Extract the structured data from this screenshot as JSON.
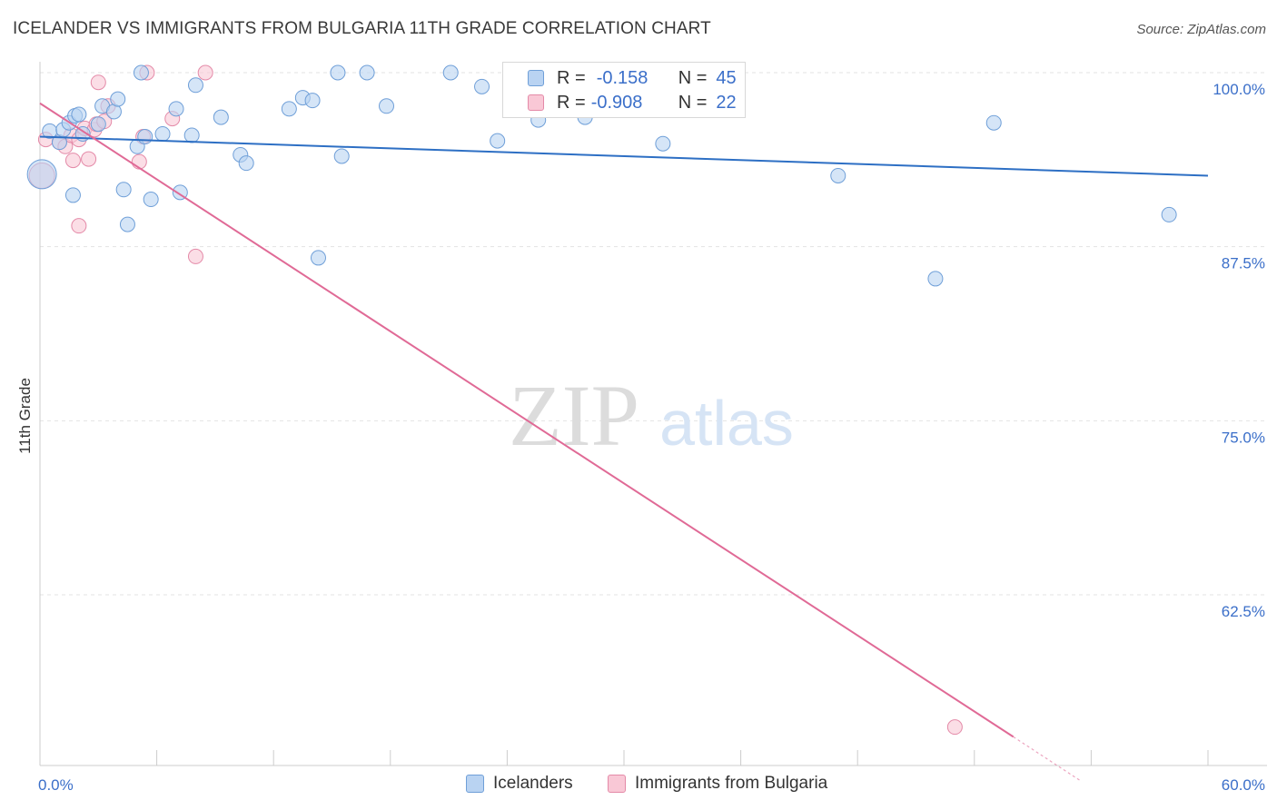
{
  "title": "ICELANDER VS IMMIGRANTS FROM BULGARIA 11TH GRADE CORRELATION CHART",
  "source": "Source: ZipAtlas.com",
  "watermark": {
    "zip": "ZIP",
    "atlas": "atlas"
  },
  "legend_top": {
    "rows": [
      {
        "r_label": "R =",
        "r_value": "-0.158",
        "n_label": "N =",
        "n_value": "45"
      },
      {
        "r_label": "R =",
        "r_value": "-0.908",
        "n_label": "N =",
        "n_value": "22"
      }
    ]
  },
  "legend_bottom": {
    "series1": "Icelanders",
    "series2": "Immigrants from Bulgaria"
  },
  "colors": {
    "blue_fill": "#b9d3f2",
    "blue_stroke": "#6f9fd8",
    "blue_line": "#2d6fc4",
    "pink_fill": "#f9c8d6",
    "pink_stroke": "#e48aa8",
    "pink_line": "#e06a96",
    "axis_text": "#3b6fc9"
  },
  "chart_data": {
    "type": "scatter",
    "title": "ICELANDER VS IMMIGRANTS FROM BULGARIA 11TH GRADE CORRELATION CHART",
    "xlabel": "",
    "ylabel": "11th Grade",
    "xlim": [
      0,
      60
    ],
    "ylim": [
      50,
      102
    ],
    "x_tick_labels": [
      "0.0%",
      "60.0%"
    ],
    "y_ticks": [
      100,
      87.5,
      75,
      62.5
    ],
    "y_tick_labels": [
      "100.0%",
      "87.5%",
      "75.0%",
      "62.5%"
    ],
    "series": [
      {
        "name": "Icelanders",
        "r": -0.158,
        "n": 45,
        "trend": {
          "x": [
            0,
            60
          ],
          "y": [
            95.4,
            92.6
          ]
        },
        "points": [
          {
            "x": 0.5,
            "y": 95.8
          },
          {
            "x": 1.0,
            "y": 95.0
          },
          {
            "x": 1.2,
            "y": 95.9
          },
          {
            "x": 1.5,
            "y": 96.4
          },
          {
            "x": 1.8,
            "y": 96.9
          },
          {
            "x": 2.0,
            "y": 97.0
          },
          {
            "x": 2.2,
            "y": 95.6
          },
          {
            "x": 1.7,
            "y": 91.2
          },
          {
            "x": 3.0,
            "y": 96.3
          },
          {
            "x": 3.2,
            "y": 97.6
          },
          {
            "x": 3.8,
            "y": 97.2
          },
          {
            "x": 4.0,
            "y": 98.1
          },
          {
            "x": 4.3,
            "y": 91.6
          },
          {
            "x": 4.5,
            "y": 89.1
          },
          {
            "x": 5.0,
            "y": 94.7
          },
          {
            "x": 5.2,
            "y": 100.0
          },
          {
            "x": 5.4,
            "y": 95.4
          },
          {
            "x": 5.7,
            "y": 90.9
          },
          {
            "x": 6.3,
            "y": 95.6
          },
          {
            "x": 7.0,
            "y": 97.4
          },
          {
            "x": 7.2,
            "y": 91.4
          },
          {
            "x": 7.8,
            "y": 95.5
          },
          {
            "x": 8.0,
            "y": 99.1
          },
          {
            "x": 9.3,
            "y": 96.8
          },
          {
            "x": 10.3,
            "y": 94.1
          },
          {
            "x": 10.6,
            "y": 93.5
          },
          {
            "x": 12.8,
            "y": 97.4
          },
          {
            "x": 13.5,
            "y": 98.2
          },
          {
            "x": 14.0,
            "y": 98.0
          },
          {
            "x": 14.3,
            "y": 86.7
          },
          {
            "x": 15.3,
            "y": 100.0
          },
          {
            "x": 15.5,
            "y": 94.0
          },
          {
            "x": 16.8,
            "y": 100.0
          },
          {
            "x": 17.8,
            "y": 97.6
          },
          {
            "x": 21.1,
            "y": 100.0
          },
          {
            "x": 22.7,
            "y": 99.0
          },
          {
            "x": 23.5,
            "y": 95.1
          },
          {
            "x": 25.6,
            "y": 96.6
          },
          {
            "x": 28.0,
            "y": 96.8
          },
          {
            "x": 32.0,
            "y": 94.9
          },
          {
            "x": 41.0,
            "y": 92.6
          },
          {
            "x": 46.0,
            "y": 85.2
          },
          {
            "x": 49.0,
            "y": 96.4
          },
          {
            "x": 58.0,
            "y": 89.8
          },
          {
            "x": 0.1,
            "y": 92.7
          }
        ]
      },
      {
        "name": "Immigrants from Bulgaria",
        "r": -0.908,
        "n": 22,
        "trend": {
          "x": [
            0,
            50
          ],
          "y": [
            97.8,
            52.3
          ]
        },
        "trend_dashed": {
          "x": [
            50,
            53.5
          ],
          "y": [
            52.3,
            49.1
          ]
        },
        "points": [
          {
            "x": 0.3,
            "y": 95.2
          },
          {
            "x": 1.0,
            "y": 95.0
          },
          {
            "x": 1.3,
            "y": 94.7
          },
          {
            "x": 1.6,
            "y": 95.5
          },
          {
            "x": 1.7,
            "y": 93.7
          },
          {
            "x": 2.0,
            "y": 95.2
          },
          {
            "x": 2.0,
            "y": 89.0
          },
          {
            "x": 2.3,
            "y": 96.0
          },
          {
            "x": 2.5,
            "y": 93.8
          },
          {
            "x": 2.8,
            "y": 95.9
          },
          {
            "x": 2.9,
            "y": 96.3
          },
          {
            "x": 3.0,
            "y": 99.3
          },
          {
            "x": 3.3,
            "y": 96.5
          },
          {
            "x": 3.5,
            "y": 97.6
          },
          {
            "x": 5.1,
            "y": 93.6
          },
          {
            "x": 5.3,
            "y": 95.4
          },
          {
            "x": 5.5,
            "y": 100.0
          },
          {
            "x": 6.8,
            "y": 96.7
          },
          {
            "x": 8.0,
            "y": 86.8
          },
          {
            "x": 8.5,
            "y": 100.0
          },
          {
            "x": 47.0,
            "y": 53.0
          },
          {
            "x": 0.1,
            "y": 92.6
          }
        ]
      }
    ]
  }
}
